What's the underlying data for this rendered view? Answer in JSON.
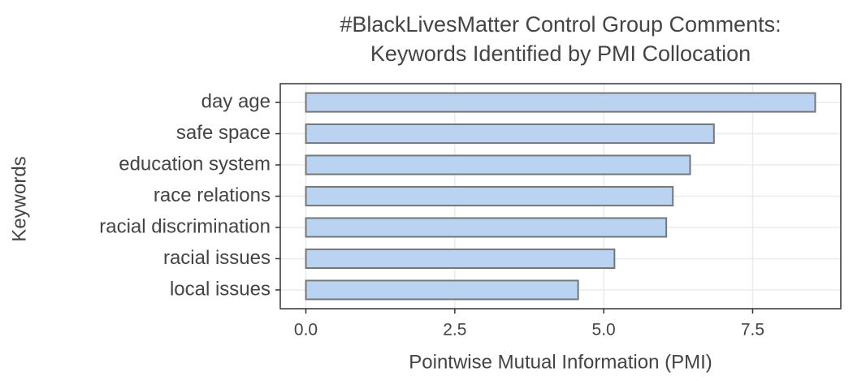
{
  "chart_data": {
    "type": "barh",
    "title": [
      "#BlackLivesMatter Control Group Comments:",
      "Keywords Identified by PMI Collocation"
    ],
    "xlabel": "Pointwise Mutual Information (PMI)",
    "ylabel": "Keywords",
    "categories": [
      "day age",
      "safe space",
      "education system",
      "race relations",
      "racial discrimination",
      "racial issues",
      "local issues"
    ],
    "values": [
      8.55,
      6.85,
      6.45,
      6.16,
      6.05,
      5.18,
      4.57
    ],
    "color": "#b9d3f0",
    "edgecolor": "#777777",
    "xlim": [
      -0.43,
      8.98
    ],
    "xticks": [
      {
        "value": 0,
        "label": "0.0"
      },
      2.5,
      {
        "value": 5,
        "label": "5.0"
      },
      7.5
    ],
    "grid": true
  }
}
